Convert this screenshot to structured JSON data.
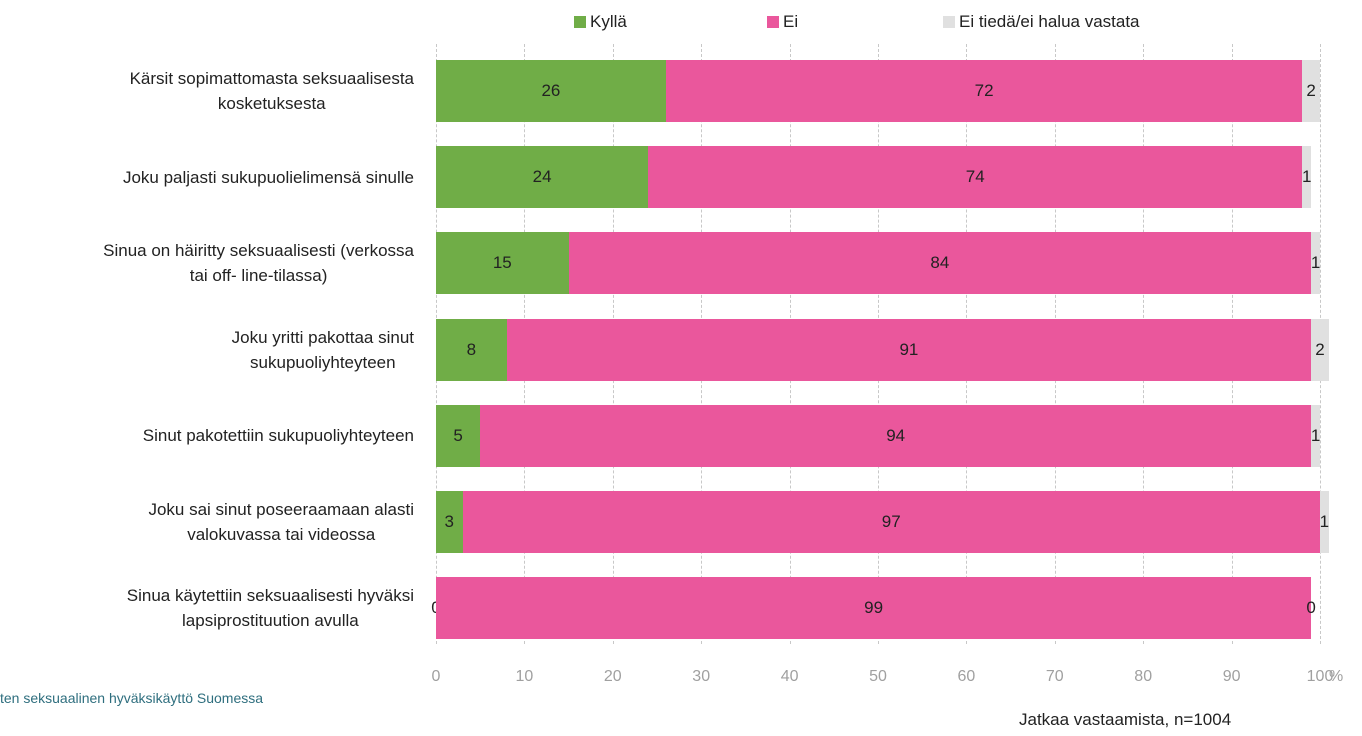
{
  "chart_data": {
    "type": "stacked_barh",
    "categories": [
      "Kärsit sopimattomasta seksuaalisesta\nkosketuksesta",
      "Joku paljasti sukupuolielimensä sinulle",
      "Sinua on häiritty seksuaalisesti (verkossa\ntai off- line-tilassa)",
      "Joku yritti pakottaa sinut\nsukupuoliyhteyteen",
      "Sinut pakotettiin sukupuoliyhteyteen",
      "Joku sai sinut poseeraamaan alasti\nvalokuvassa tai videossa",
      "Sinua käytettiin seksuaalisesti hyväksi\nlapsiprostituution avulla"
    ],
    "series": [
      {
        "name": "Kyllä",
        "color": "#70ad47",
        "values": [
          26,
          24,
          15,
          8,
          5,
          3,
          0
        ]
      },
      {
        "name": "Ei",
        "color": "#ea579c",
        "values": [
          72,
          74,
          84,
          91,
          94,
          97,
          99
        ]
      },
      {
        "name": "Ei tiedä/ei halua vastata",
        "color": "#e0e0e0",
        "values": [
          2,
          1,
          1,
          2,
          1,
          1,
          0
        ]
      }
    ],
    "xlim": [
      0,
      100
    ],
    "xticks": [
      0,
      10,
      20,
      30,
      40,
      50,
      60,
      70,
      80,
      90,
      100
    ],
    "x_unit": "%",
    "grid": true,
    "source": "ten seksuaalinen hyväksikäyttö Suomessa",
    "note": "Jatkaa vastaamista, n=1004"
  }
}
